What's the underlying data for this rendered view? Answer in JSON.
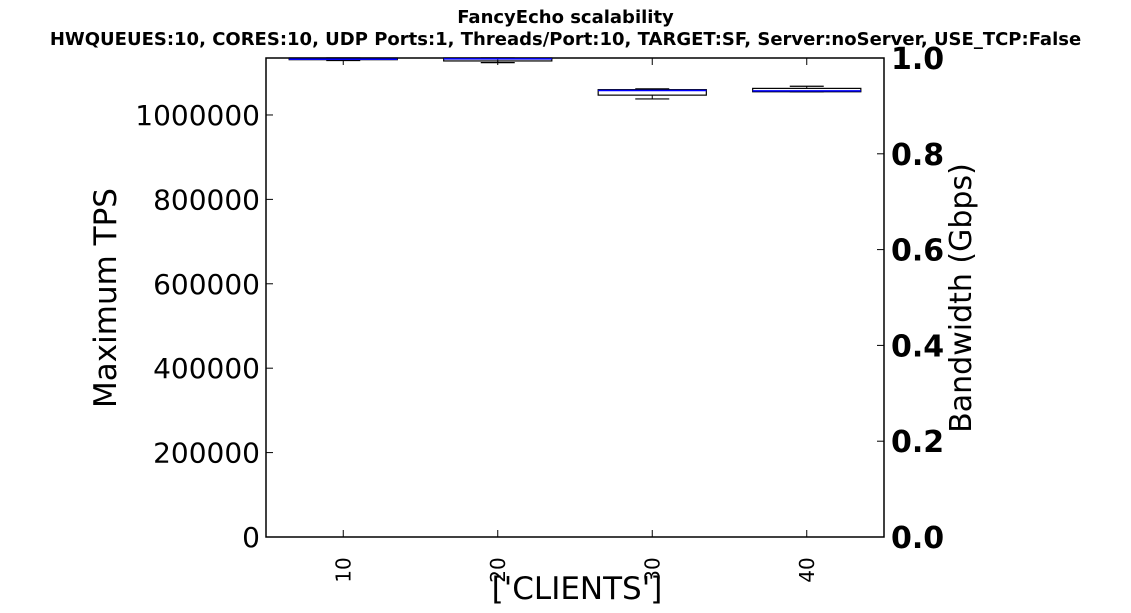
{
  "chart_data": {
    "type": "box",
    "title": "FancyEcho scalability",
    "subtitle": "HWQUEUES:10, CORES:10, UDP Ports:1, Threads/Port:10, TARGET:SF, Server:noServer, USE_TCP:False",
    "xlabel": "['CLIENTS']",
    "ylabel": "Maximum TPS",
    "y2label": "Bandwidth (Gbps)",
    "categories": [
      "10",
      "20",
      "30",
      "40"
    ],
    "ylim": [
      0,
      1135000
    ],
    "y2lim": [
      0.0,
      1.0
    ],
    "yticks": [
      "0",
      "200000",
      "400000",
      "600000",
      "800000",
      "1000000"
    ],
    "yticks_values": [
      0,
      200000,
      400000,
      600000,
      800000,
      1000000
    ],
    "y2ticks": [
      "0.0",
      "0.2",
      "0.4",
      "0.6",
      "0.8",
      "1.0"
    ],
    "y2ticks_values": [
      0.0,
      0.2,
      0.4,
      0.6,
      0.8,
      1.0
    ],
    "grid": false,
    "boxes": [
      {
        "category": "10",
        "whisker_low": 1129000,
        "q1": 1131000,
        "median": 1132000,
        "q3": 1135000,
        "whisker_high": 1135000
      },
      {
        "category": "20",
        "whisker_low": 1124000,
        "q1": 1128000,
        "median": 1133000,
        "q3": 1135000,
        "whisker_high": 1135000
      },
      {
        "category": "30",
        "whisker_low": 1038000,
        "q1": 1047000,
        "median": 1058000,
        "q3": 1060000,
        "whisker_high": 1062000
      },
      {
        "category": "40",
        "whisker_low": 1055000,
        "q1": 1055000,
        "median": 1057000,
        "q3": 1063000,
        "whisker_high": 1068000
      }
    ],
    "colors": {
      "box": "#000000",
      "median": "#0000ff",
      "axis": "#000000"
    }
  }
}
